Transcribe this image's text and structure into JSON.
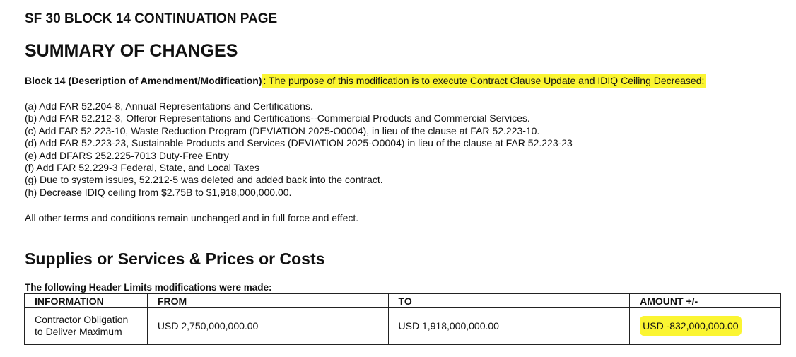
{
  "doc_title": "SF 30 BLOCK 14 CONTINUATION PAGE",
  "summary_title": "SUMMARY OF CHANGES",
  "block14": {
    "label": "Block 14 (Description of Amendment/Modification)",
    "text": ": The purpose of this modification is to execute Contract Clause Update and IDIQ Ceiling Decreased:"
  },
  "changes": [
    "(a) Add FAR 52.204-8, Annual Representations and Certifications.",
    "(b) Add FAR 52.212-3, Offeror Representations and Certifications--Commercial Products and Commercial Services.",
    "(c) Add FAR 52.223-10, Waste Reduction Program (DEVIATION 2025-O0004), in lieu of the clause at FAR 52.223-10.",
    "(d) Add FAR 52.223-23, Sustainable Products and Services (DEVIATION 2025-O0004) in lieu of the clause at FAR 52.223-23",
    "(e) Add DFARS 252.225-7013 Duty-Free Entry",
    "(f) Add FAR 52.229-3 Federal, State, and Local Taxes",
    "(g) Due to system issues, 52.212-5 was deleted and added back into the contract.",
    "(h) Decrease IDIQ ceiling from $2.75B to $1,918,000,000.00."
  ],
  "other_terms": "All other terms and conditions remain unchanged and in full force and effect.",
  "supplies_title": "Supplies or Services & Prices or Costs",
  "table": {
    "caption": "The following Header Limits modifications were made:",
    "headers": [
      "INFORMATION",
      "FROM",
      "TO",
      "AMOUNT +/-"
    ],
    "rows": [
      [
        "Contractor Obligation to Deliver Maximum",
        "USD 2,750,000,000.00",
        "USD 1,918,000,000.00",
        "USD -832,000,000.00"
      ]
    ]
  },
  "highlight_color": "#fbf532"
}
